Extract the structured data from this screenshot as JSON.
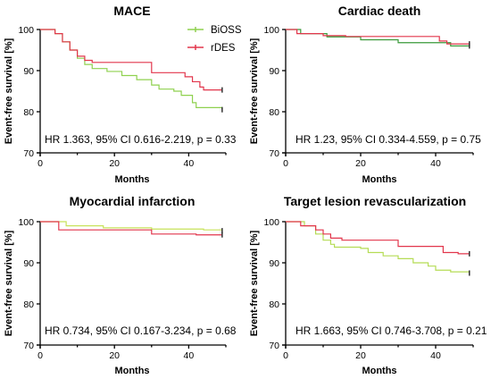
{
  "chart_data": [
    {
      "type": "line",
      "title": "MACE",
      "xlabel": "Months",
      "ylabel": "Event-free survival [%]",
      "xlim": [
        0,
        50
      ],
      "ylim": [
        70,
        100
      ],
      "xticks": [
        "0",
        "20",
        "40"
      ],
      "yticks": [
        "70",
        "80",
        "90",
        "100"
      ],
      "annotation": "HR 1.363, 95% CI 0.616-2.219, p = 0.33",
      "legend": [
        "BiOSS",
        "rDES"
      ],
      "series": [
        {
          "name": "BiOSS",
          "color": "#8fd14f",
          "points": [
            [
              0,
              100
            ],
            [
              4,
              99
            ],
            [
              6,
              97
            ],
            [
              8,
              95
            ],
            [
              10,
              93
            ],
            [
              12,
              91.5
            ],
            [
              14,
              90.5
            ],
            [
              18,
              89.8
            ],
            [
              22,
              88.8
            ],
            [
              26,
              87.8
            ],
            [
              30,
              86.5
            ],
            [
              32,
              85.5
            ],
            [
              36,
              85
            ],
            [
              38,
              84
            ],
            [
              41,
              82.2
            ],
            [
              42,
              81
            ],
            [
              49,
              80.5
            ]
          ]
        },
        {
          "name": "rDES",
          "color": "#e2364c",
          "points": [
            [
              0,
              100
            ],
            [
              4,
              99
            ],
            [
              6,
              97
            ],
            [
              8,
              95
            ],
            [
              10,
              93.5
            ],
            [
              12,
              92.5
            ],
            [
              14,
              92
            ],
            [
              30,
              92
            ],
            [
              30,
              89.5
            ],
            [
              38,
              89.5
            ],
            [
              39,
              88.5
            ],
            [
              41,
              87.3
            ],
            [
              43,
              86
            ],
            [
              44,
              85.3
            ],
            [
              49,
              85.3
            ]
          ]
        }
      ]
    },
    {
      "type": "line",
      "title": "Cardiac death",
      "xlabel": "Months",
      "ylabel": "Event-free survival [%]",
      "xlim": [
        0,
        50
      ],
      "ylim": [
        70,
        100
      ],
      "xticks": [
        "0",
        "20",
        "40"
      ],
      "yticks": [
        "70",
        "80",
        "90",
        "100"
      ],
      "annotation": "HR 1.23, 95% CI 0.334-4.559, p = 0.75",
      "series": [
        {
          "name": "BiOSS",
          "color": "#3a9a3a",
          "points": [
            [
              0,
              100
            ],
            [
              4,
              99
            ],
            [
              11,
              98.2
            ],
            [
              20,
              97.5
            ],
            [
              30,
              96.8
            ],
            [
              44,
              96
            ],
            [
              49,
              96
            ]
          ]
        },
        {
          "name": "rDES",
          "color": "#e2364c",
          "points": [
            [
              0,
              100
            ],
            [
              3,
              99
            ],
            [
              10,
              98.5
            ],
            [
              16,
              98.3
            ],
            [
              30,
              98.3
            ],
            [
              41,
              97.2
            ],
            [
              43,
              96.5
            ],
            [
              49,
              96.5
            ]
          ]
        }
      ]
    },
    {
      "type": "line",
      "title": "Myocardial infarction",
      "xlabel": "Months",
      "ylabel": "Event-free survival [%]",
      "xlim": [
        0,
        50
      ],
      "ylim": [
        70,
        100
      ],
      "xticks": [
        "0",
        "20",
        "40"
      ],
      "yticks": [
        "70",
        "80",
        "90",
        "100"
      ],
      "annotation": "HR 0.734, 95% CI 0.167-3.234, p = 0.68",
      "series": [
        {
          "name": "BiOSS",
          "color": "#c8e25a",
          "points": [
            [
              0,
              100
            ],
            [
              6,
              100
            ],
            [
              7,
              99
            ],
            [
              17,
              98.5
            ],
            [
              30,
              98.2
            ],
            [
              44,
              98
            ],
            [
              49,
              97.8
            ]
          ]
        },
        {
          "name": "rDES",
          "color": "#e2364c",
          "points": [
            [
              0,
              100
            ],
            [
              5,
              98
            ],
            [
              20,
              98
            ],
            [
              30,
              97
            ],
            [
              42,
              96.8
            ],
            [
              49,
              96.8
            ]
          ]
        }
      ]
    },
    {
      "type": "line",
      "title": "Target lesion revascularization",
      "xlabel": "Months",
      "ylabel": "Event-free survival [%]",
      "xlim": [
        0,
        50
      ],
      "ylim": [
        70,
        100
      ],
      "xticks": [
        "0",
        "20",
        "40"
      ],
      "yticks": [
        "70",
        "80",
        "90",
        "100"
      ],
      "annotation": "HR 1.663, 95% CI 0.746-3.708, p = 0.21",
      "series": [
        {
          "name": "BiOSS",
          "color": "#b5dc55",
          "points": [
            [
              0,
              100
            ],
            [
              5,
              99
            ],
            [
              8,
              97
            ],
            [
              10,
              95.5
            ],
            [
              12,
              94.5
            ],
            [
              13,
              93.8
            ],
            [
              20,
              93.5
            ],
            [
              22,
              92.5
            ],
            [
              26,
              91.7
            ],
            [
              30,
              91
            ],
            [
              34,
              90
            ],
            [
              38,
              89.2
            ],
            [
              40,
              88.2
            ],
            [
              44,
              87.8
            ],
            [
              49,
              87.5
            ]
          ]
        },
        {
          "name": "rDES",
          "color": "#e2364c",
          "points": [
            [
              0,
              100
            ],
            [
              4,
              99
            ],
            [
              8,
              98
            ],
            [
              10,
              97
            ],
            [
              12,
              96
            ],
            [
              15,
              95.5
            ],
            [
              30,
              95.5
            ],
            [
              30,
              94
            ],
            [
              40,
              94
            ],
            [
              42,
              92.5
            ],
            [
              46,
              92.2
            ],
            [
              49,
              92.2
            ]
          ]
        }
      ]
    }
  ]
}
